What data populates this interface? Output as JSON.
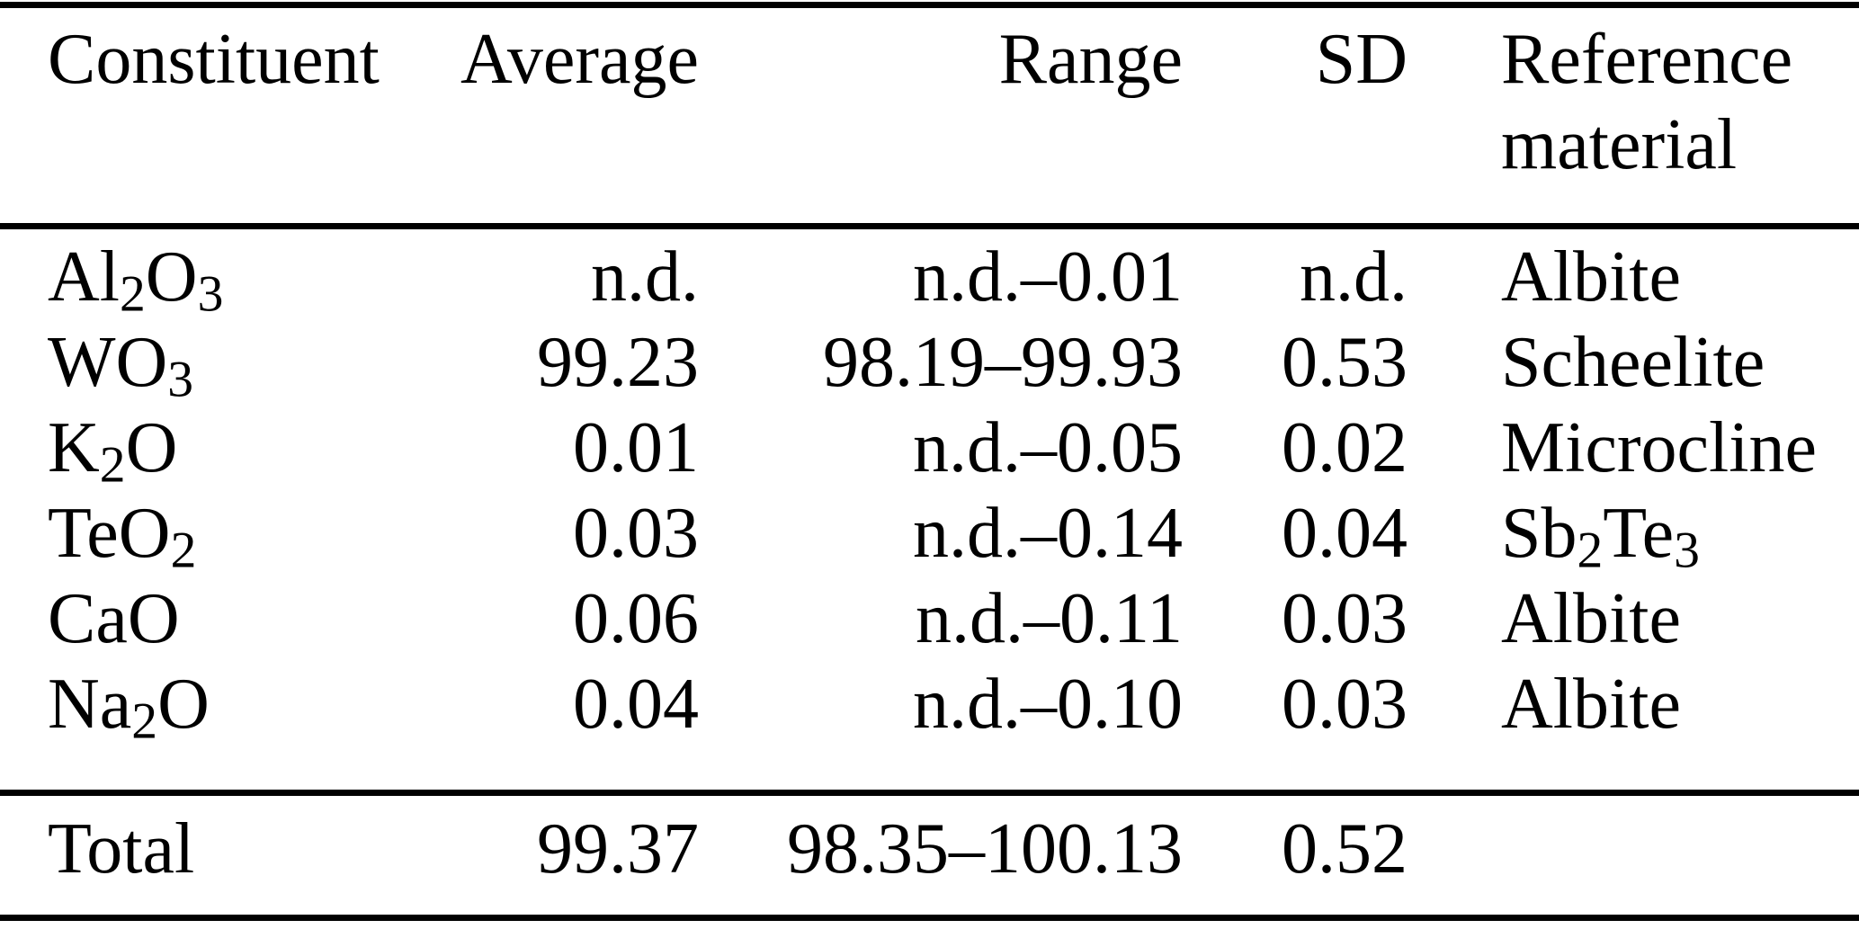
{
  "colors": {
    "text": "#000000",
    "background": "#ffffff",
    "rule": "#000000"
  },
  "table": {
    "type": "table",
    "header": {
      "constituent": "Constituent",
      "average": "Average",
      "range": "Range",
      "sd": "SD",
      "reference": "Reference material"
    },
    "rows": [
      {
        "constituent": "Al_2O_3",
        "average": "n.d.",
        "range": "n.d.–0.01",
        "sd": "n.d.",
        "reference": "Albite"
      },
      {
        "constituent": "WO_3",
        "average": "99.23",
        "range": "98.19–99.93",
        "sd": "0.53",
        "reference": "Scheelite"
      },
      {
        "constituent": "K_2O",
        "average": "0.01",
        "range": "n.d.–0.05",
        "sd": "0.02",
        "reference": "Microcline"
      },
      {
        "constituent": "TeO_2",
        "average": "0.03",
        "range": "n.d.–0.14",
        "sd": "0.04",
        "reference": "Sb_2Te_3"
      },
      {
        "constituent": "CaO",
        "average": "0.06",
        "range": "n.d.–0.11",
        "sd": "0.03",
        "reference": "Albite"
      },
      {
        "constituent": "Na_2O",
        "average": "0.04",
        "range": "n.d.–0.10",
        "sd": "0.03",
        "reference": "Albite"
      }
    ],
    "total_row": {
      "label": "Total",
      "average": "99.37",
      "range": "98.35–100.13",
      "sd": "0.52",
      "reference": ""
    }
  }
}
